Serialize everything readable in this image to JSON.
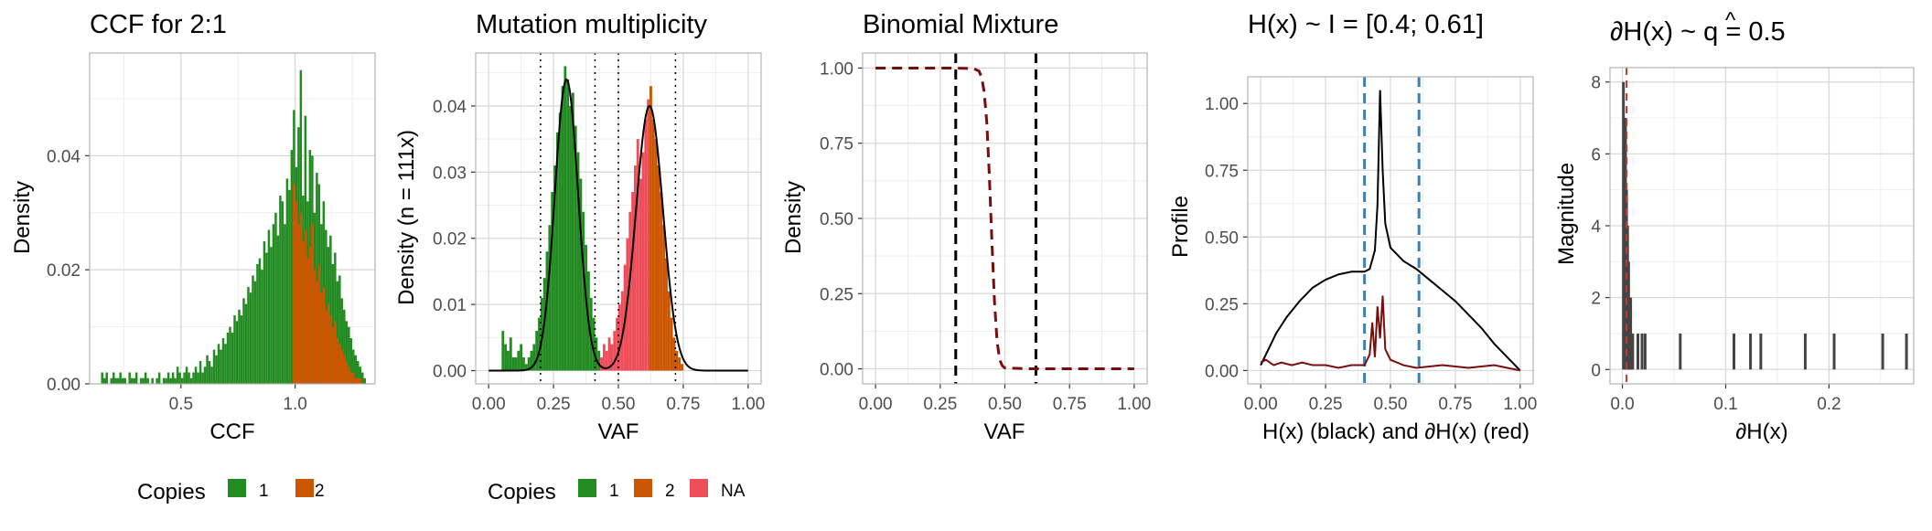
{
  "colors": {
    "copies_1": "#228b22",
    "copies_2": "#cc5500",
    "copies_na": "#ee4e5a",
    "dark_red": "#7a0c0c",
    "steel_blue": "#3f7fb0"
  },
  "chart_data": [
    {
      "id": "ccf",
      "type": "bar",
      "title": "CCF for 2:1",
      "xlabel": "CCF",
      "ylabel": "Density",
      "xlim": [
        0.1,
        1.35
      ],
      "ylim": [
        0,
        0.058
      ],
      "x_ticks": [
        0.5,
        1.0
      ],
      "x_tick_labels": [
        "0.5",
        "1.0"
      ],
      "y_ticks": [
        0,
        0.02,
        0.04
      ],
      "y_tick_labels": [
        "0.00",
        "0.02",
        "0.04"
      ],
      "grid": true,
      "bin_width": 0.01,
      "bins_start": 0.15,
      "series": [
        {
          "name": "1",
          "color_key": "copies_1",
          "start": 0.15,
          "values": [
            0.002,
            0.001,
            0.002,
            0,
            0.001,
            0.002,
            0.001,
            0.001,
            0.002,
            0.001,
            0.001,
            0,
            0.002,
            0.001,
            0.001,
            0.002,
            0,
            0.001,
            0.001,
            0.002,
            0.001,
            0,
            0.001,
            0,
            0.001,
            0.002,
            0,
            0.001,
            0.001,
            0.002,
            0.001,
            0.002,
            0.001,
            0.003,
            0.002,
            0.001,
            0.002,
            0.003,
            0.002,
            0.001,
            0.002,
            0.003,
            0.002,
            0.004,
            0.002,
            0.003,
            0.005,
            0.004,
            0.003,
            0.006,
            0.005,
            0.007,
            0.006,
            0.008,
            0.007,
            0.009,
            0.01,
            0.009,
            0.012,
            0.011,
            0.013,
            0.012,
            0.015,
            0.014,
            0.017,
            0.016,
            0.019,
            0.018,
            0.021,
            0.022,
            0.02,
            0.025,
            0.023,
            0.027,
            0.024,
            0.028,
            0.03,
            0.026,
            0.033,
            0.032,
            0.028,
            0.036,
            0.034,
            0.041,
            0.048,
            0.038,
            0.045,
            0.055,
            0.033,
            0.047,
            0.032,
            0.041,
            0.04,
            0.03,
            0.037,
            0.035,
            0.028,
            0.032,
            0.027,
            0.024,
            0.026,
            0.021,
            0.023,
            0.018,
            0.019,
            0.015,
            0.013,
            0.011,
            0.01,
            0.008,
            0.006,
            0.005,
            0.004,
            0.003,
            0.002,
            0.001
          ]
        },
        {
          "name": "2",
          "color_key": "copies_2",
          "start": 0.99,
          "values": [
            0.035,
            0.032,
            0.028,
            0.03,
            0.025,
            0.027,
            0.022,
            0.024,
            0.028,
            0.02,
            0.018,
            0.021,
            0.016,
            0.017,
            0.013,
            0.014,
            0.012,
            0.01,
            0.011,
            0.008,
            0.007,
            0.006,
            0.005,
            0.004,
            0.003,
            0.002,
            0.002,
            0.001,
            0.001,
            0.001
          ]
        }
      ]
    },
    {
      "id": "multiplicity",
      "type": "bar",
      "title": "Mutation multiplicity",
      "xlabel": "VAF",
      "ylabel": "Density (n = 111x)",
      "xlim": [
        -0.05,
        1.05
      ],
      "ylim": [
        -0.002,
        0.048
      ],
      "x_ticks": [
        0,
        0.25,
        0.5,
        0.75,
        1.0
      ],
      "x_tick_labels": [
        "0.00",
        "0.25",
        "0.50",
        "0.75",
        "1.00"
      ],
      "y_ticks": [
        0,
        0.01,
        0.02,
        0.03,
        0.04
      ],
      "y_tick_labels": [
        "0.00",
        "0.01",
        "0.02",
        "0.03",
        "0.04"
      ],
      "grid": true,
      "bin_width": 0.01,
      "vlines": [
        0.2,
        0.41,
        0.5,
        0.72
      ],
      "density_curve": [
        {
          "mean": 0.3,
          "sd": 0.045,
          "peak": 0.044
        },
        {
          "mean": 0.62,
          "sd": 0.052,
          "peak": 0.04
        }
      ],
      "series": [
        {
          "name": "1",
          "color_key": "copies_1",
          "start": 0.05,
          "values": [
            0.006,
            0.004,
            0.003,
            0.005,
            0.002,
            0.002,
            0.003,
            0.004,
            0.002,
            0.001,
            0.002,
            0.003,
            0.004,
            0.006,
            0.008,
            0.011,
            0.014,
            0.018,
            0.022,
            0.027,
            0.031,
            0.036,
            0.039,
            0.043,
            0.046,
            0.044,
            0.04,
            0.042,
            0.037,
            0.033,
            0.029,
            0.024,
            0.019,
            0.015,
            0.011,
            0.008,
            0.005,
            0.003
          ]
        },
        {
          "name": "NA",
          "color_key": "copies_na",
          "start": 0.43,
          "values": [
            0.002,
            0.004,
            0.003,
            0.005,
            0.004,
            0.006,
            0.008,
            0.01,
            0.012,
            0.016,
            0.02,
            0.024,
            0.027,
            0.031,
            0.035,
            0.029,
            0.033,
            0.038,
            0.041
          ]
        },
        {
          "name": "2",
          "color_key": "copies_2",
          "start": 0.62,
          "values": [
            0.043,
            0.038,
            0.035,
            0.031,
            0.027,
            0.022,
            0.017,
            0.012,
            0.008,
            0.005,
            0.003,
            0.002,
            0.001
          ]
        }
      ]
    },
    {
      "id": "binomial",
      "type": "line",
      "title": "Binomial Mixture",
      "xlabel": "VAF",
      "ylabel": "Density",
      "xlim": [
        -0.05,
        1.05
      ],
      "ylim": [
        -0.05,
        1.05
      ],
      "x_ticks": [
        0,
        0.25,
        0.5,
        0.75,
        1.0
      ],
      "x_tick_labels": [
        "0.00",
        "0.25",
        "0.50",
        "0.75",
        "1.00"
      ],
      "y_ticks": [
        0,
        0.25,
        0.5,
        0.75,
        1.0
      ],
      "y_tick_labels": [
        "0.00",
        "0.25",
        "0.50",
        "0.75",
        "1.00"
      ],
      "grid": true,
      "vlines": [
        0.31,
        0.62
      ],
      "series": [
        {
          "name": "",
          "color_key": "dark_red",
          "dashed": true,
          "x": [
            0.0,
            0.1,
            0.2,
            0.3,
            0.38,
            0.4,
            0.41,
            0.42,
            0.43,
            0.44,
            0.45,
            0.46,
            0.47,
            0.48,
            0.49,
            0.5,
            0.6,
            0.7,
            0.8,
            0.9,
            1.0
          ],
          "y": [
            1.0,
            1.0,
            1.0,
            1.0,
            0.998,
            0.99,
            0.97,
            0.92,
            0.82,
            0.64,
            0.42,
            0.22,
            0.09,
            0.03,
            0.01,
            0.003,
            0.0,
            0.0,
            0.0,
            0.0,
            0.0
          ]
        }
      ]
    },
    {
      "id": "profile",
      "type": "line",
      "title": "H(x) ~ I = [0.4; 0.61]",
      "xlabel": "H(x) (black) and ∂H(x) (red)",
      "ylabel": "Profile",
      "xlim": [
        -0.05,
        1.05
      ],
      "ylim": [
        -0.05,
        1.1
      ],
      "x_ticks": [
        0,
        0.25,
        0.5,
        0.75,
        1.0
      ],
      "x_tick_labels": [
        "0.00",
        "0.25",
        "0.50",
        "0.75",
        "1.00"
      ],
      "y_ticks": [
        0,
        0.25,
        0.5,
        0.75,
        1.0
      ],
      "y_tick_labels": [
        "0.00",
        "0.25",
        "0.50",
        "0.75",
        "1.00"
      ],
      "grid": true,
      "vlines": [
        0.4,
        0.61
      ],
      "series": [
        {
          "name": "",
          "color_key": "black",
          "x": [
            0.0,
            0.03,
            0.06,
            0.1,
            0.15,
            0.2,
            0.25,
            0.3,
            0.35,
            0.4,
            0.42,
            0.44,
            0.45,
            0.46,
            0.47,
            0.48,
            0.5,
            0.55,
            0.6,
            0.65,
            0.7,
            0.75,
            0.8,
            0.85,
            0.9,
            0.95,
            1.0
          ],
          "y": [
            0.02,
            0.08,
            0.14,
            0.2,
            0.26,
            0.31,
            0.34,
            0.36,
            0.37,
            0.37,
            0.38,
            0.45,
            0.62,
            1.05,
            0.75,
            0.55,
            0.46,
            0.41,
            0.38,
            0.34,
            0.3,
            0.26,
            0.21,
            0.16,
            0.1,
            0.05,
            0.0
          ]
        },
        {
          "name": "",
          "color_key": "dark_red",
          "x": [
            0.0,
            0.02,
            0.05,
            0.08,
            0.12,
            0.16,
            0.2,
            0.25,
            0.3,
            0.35,
            0.4,
            0.42,
            0.43,
            0.44,
            0.45,
            0.46,
            0.47,
            0.48,
            0.5,
            0.55,
            0.6,
            0.7,
            0.8,
            0.9,
            0.95,
            1.0
          ],
          "y": [
            0.03,
            0.04,
            0.02,
            0.03,
            0.02,
            0.03,
            0.02,
            0.02,
            0.01,
            0.02,
            0.02,
            0.06,
            0.18,
            0.05,
            0.24,
            0.12,
            0.28,
            0.08,
            0.04,
            0.02,
            0.01,
            0.02,
            0.01,
            0.02,
            0.01,
            0.0
          ]
        }
      ]
    },
    {
      "id": "gradient",
      "type": "bar",
      "title": "∂H(x) ~  q = 0.5",
      "title_hat": "^",
      "xlabel": "∂H(x)",
      "ylabel": "Magnitude",
      "xlim": [
        -0.012,
        0.282
      ],
      "ylim": [
        -0.4,
        8.4
      ],
      "x_ticks": [
        0,
        0.1,
        0.2
      ],
      "x_tick_labels": [
        "0.0",
        "0.1",
        "0.2"
      ],
      "y_ticks": [
        0,
        2,
        4,
        6,
        8
      ],
      "y_tick_labels": [
        "0",
        "2",
        "4",
        "6",
        "8"
      ],
      "grid": true,
      "vline_dashed_red": 0.004,
      "bars": {
        "x": [
          0.001,
          0.002,
          0.003,
          0.004,
          0.005,
          0.006,
          0.007,
          0.008,
          0.009,
          0.01,
          0.015,
          0.019,
          0.022,
          0.056,
          0.108,
          0.124,
          0.134,
          0.177,
          0.205,
          0.252,
          0.275
        ],
        "values": [
          8,
          6,
          7,
          5,
          4,
          3,
          2,
          2,
          1,
          1,
          1,
          1,
          1,
          1,
          1,
          1,
          1,
          1,
          1,
          1,
          1
        ]
      }
    }
  ],
  "legends": [
    {
      "title": "Copies",
      "items": [
        {
          "label": "1",
          "color_key": "copies_1"
        },
        {
          "label": "2",
          "color_key": "copies_2"
        }
      ]
    },
    {
      "title": "Copies",
      "items": [
        {
          "label": "1",
          "color_key": "copies_1"
        },
        {
          "label": "2",
          "color_key": "copies_2"
        },
        {
          "label": "NA",
          "color_key": "copies_na"
        }
      ]
    }
  ]
}
